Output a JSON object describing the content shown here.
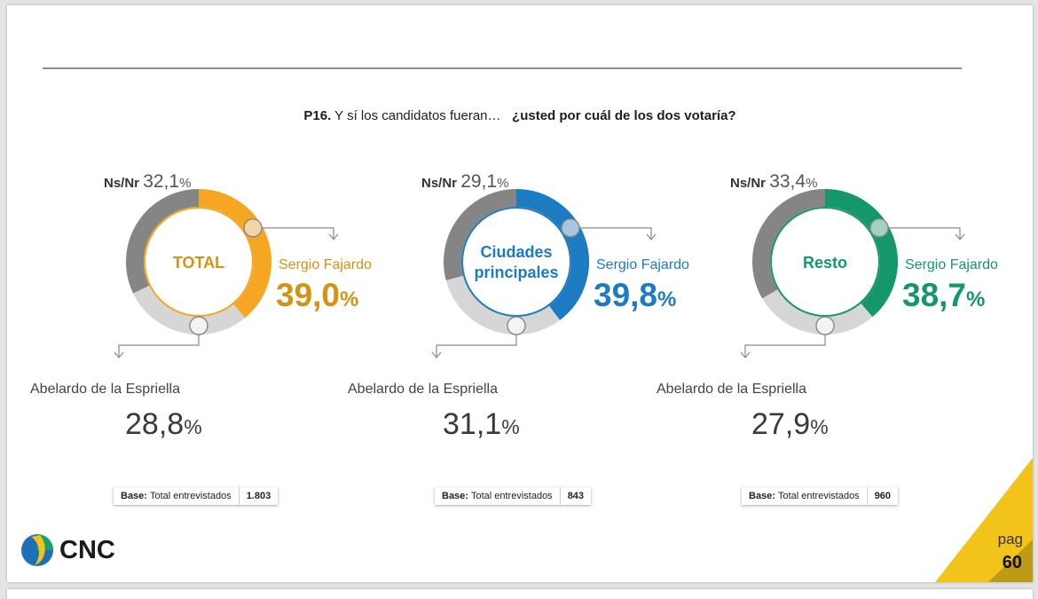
{
  "question": {
    "code": "P16.",
    "text": "Y sí los candidatos fueran…",
    "emphasis": "¿usted por cuál de los dos votaría?"
  },
  "colors": {
    "total": "#f5a623",
    "total_text": "#d49312",
    "ciudades": "#1d7bc1",
    "resto": "#16976b",
    "nsnr": "#858585",
    "abelardo": "#d6d6d6",
    "neutral_text": "#3a3a3a"
  },
  "chart_data": [
    {
      "type": "pie",
      "center_label": "TOTAL",
      "categories": [
        "Sergio Fajardo",
        "Abelardo de la Espriella",
        "Ns/Nr"
      ],
      "values": [
        39.0,
        28.8,
        32.1
      ],
      "display": {
        "fajardo": "39,0",
        "abelardo": "28,8",
        "nsnr": "32,1",
        "unit": "%"
      },
      "accent": "#f5a623",
      "accent_text": "#d49312"
    },
    {
      "type": "pie",
      "center_label": "Ciudades principales",
      "categories": [
        "Sergio Fajardo",
        "Abelardo de la Espriella",
        "Ns/Nr"
      ],
      "values": [
        39.8,
        31.1,
        29.1
      ],
      "display": {
        "fajardo": "39,8",
        "abelardo": "31,1",
        "nsnr": "29,1",
        "unit": "%"
      },
      "accent": "#1d7bc1",
      "accent_text": "#1d7bc1"
    },
    {
      "type": "pie",
      "center_label": "Resto",
      "categories": [
        "Sergio Fajardo",
        "Abelardo de la Espriella",
        "Ns/Nr"
      ],
      "values": [
        38.7,
        27.9,
        33.4
      ],
      "display": {
        "fajardo": "38,7",
        "abelardo": "27,9",
        "nsnr": "33,4",
        "unit": "%"
      },
      "accent": "#16976b",
      "accent_text": "#16976b"
    }
  ],
  "labels": {
    "nsnr": "Ns/Nr",
    "fajardo": "Sergio Fajardo",
    "abelardo": "Abelardo de la Espriella"
  },
  "footer": [
    {
      "label_bold": "Base:",
      "label": "Total entrevistados",
      "value": "1.803"
    },
    {
      "label_bold": "Base:",
      "label": "Total entrevistados",
      "value": "843"
    },
    {
      "label_bold": "Base:",
      "label": "Total entrevistados",
      "value": "960"
    }
  ],
  "logo": {
    "text": "CNC"
  },
  "page": {
    "label": "pag",
    "number": "60"
  }
}
